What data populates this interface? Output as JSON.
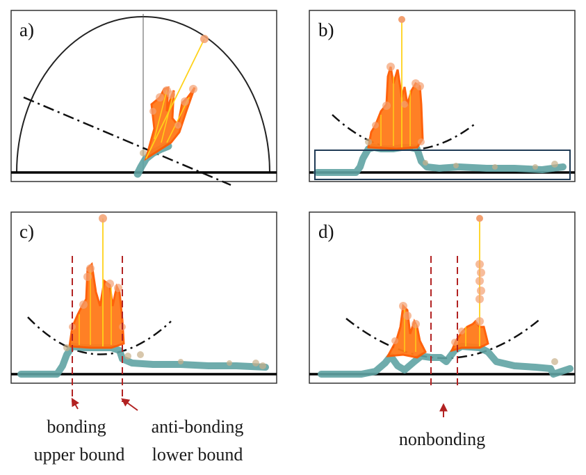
{
  "panels": [
    {
      "label": "a)"
    },
    {
      "label": "b)"
    },
    {
      "label": "c)"
    },
    {
      "label": "d)"
    }
  ],
  "annotations": {
    "bonding_line1": "bonding",
    "bonding_line2": "upper bound",
    "antibonding_line1": "anti-bonding",
    "antibonding_line2": "lower bound",
    "nonbonding": "nonbonding"
  },
  "colors": {
    "frame": "#333333",
    "baseline": "#000000",
    "teal": "#5fa3a3",
    "orange": "#ff6a00",
    "yellow": "#ffd21a",
    "dot": "#f3a070",
    "red_dash": "#b22222",
    "box": "#1f3a55"
  }
}
